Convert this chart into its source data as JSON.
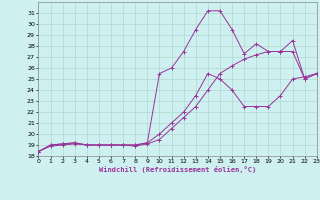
{
  "xlabel": "Windchill (Refroidissement éolien,°C)",
  "background_color": "#cff0f0",
  "grid_color": "#b0d8d0",
  "line_color": "#993399",
  "ylim": [
    18,
    32
  ],
  "xlim": [
    0,
    23
  ],
  "yticks": [
    18,
    19,
    20,
    21,
    22,
    23,
    24,
    25,
    26,
    27,
    28,
    29,
    30,
    31
  ],
  "xticks": [
    0,
    1,
    2,
    3,
    4,
    5,
    6,
    7,
    8,
    9,
    10,
    11,
    12,
    13,
    14,
    15,
    16,
    17,
    18,
    19,
    20,
    21,
    22,
    23
  ],
  "line1_x": [
    0,
    1,
    2,
    3,
    4,
    5,
    6,
    7,
    8,
    9,
    10,
    11,
    12,
    13,
    14,
    15,
    16,
    17,
    18,
    19,
    20,
    21,
    22,
    23
  ],
  "line1_y": [
    18.4,
    19.0,
    19.1,
    19.2,
    19.0,
    19.0,
    19.0,
    19.0,
    19.0,
    19.2,
    20.0,
    21.0,
    22.0,
    23.5,
    25.5,
    25.0,
    24.0,
    22.5,
    22.5,
    22.5,
    23.5,
    25.0,
    25.2,
    25.5
  ],
  "line2_x": [
    0,
    1,
    2,
    3,
    4,
    5,
    6,
    7,
    8,
    9,
    10,
    11,
    12,
    13,
    14,
    15,
    16,
    17,
    18,
    19,
    20,
    21,
    22,
    23
  ],
  "line2_y": [
    18.4,
    19.0,
    19.1,
    19.2,
    19.0,
    19.0,
    19.0,
    19.0,
    19.0,
    19.2,
    25.5,
    26.0,
    27.5,
    29.5,
    31.2,
    31.2,
    29.5,
    27.3,
    28.2,
    27.5,
    27.5,
    28.5,
    25.0,
    25.5
  ],
  "line3_x": [
    0,
    1,
    2,
    3,
    4,
    5,
    6,
    7,
    8,
    9,
    10,
    11,
    12,
    13,
    14,
    15,
    16,
    17,
    18,
    19,
    20,
    21,
    22,
    23
  ],
  "line3_y": [
    18.4,
    18.9,
    19.0,
    19.1,
    19.0,
    19.0,
    19.0,
    19.0,
    18.9,
    19.1,
    19.5,
    20.5,
    21.5,
    22.5,
    24.0,
    25.5,
    26.2,
    26.8,
    27.2,
    27.5,
    27.5,
    27.5,
    25.0,
    25.5
  ]
}
